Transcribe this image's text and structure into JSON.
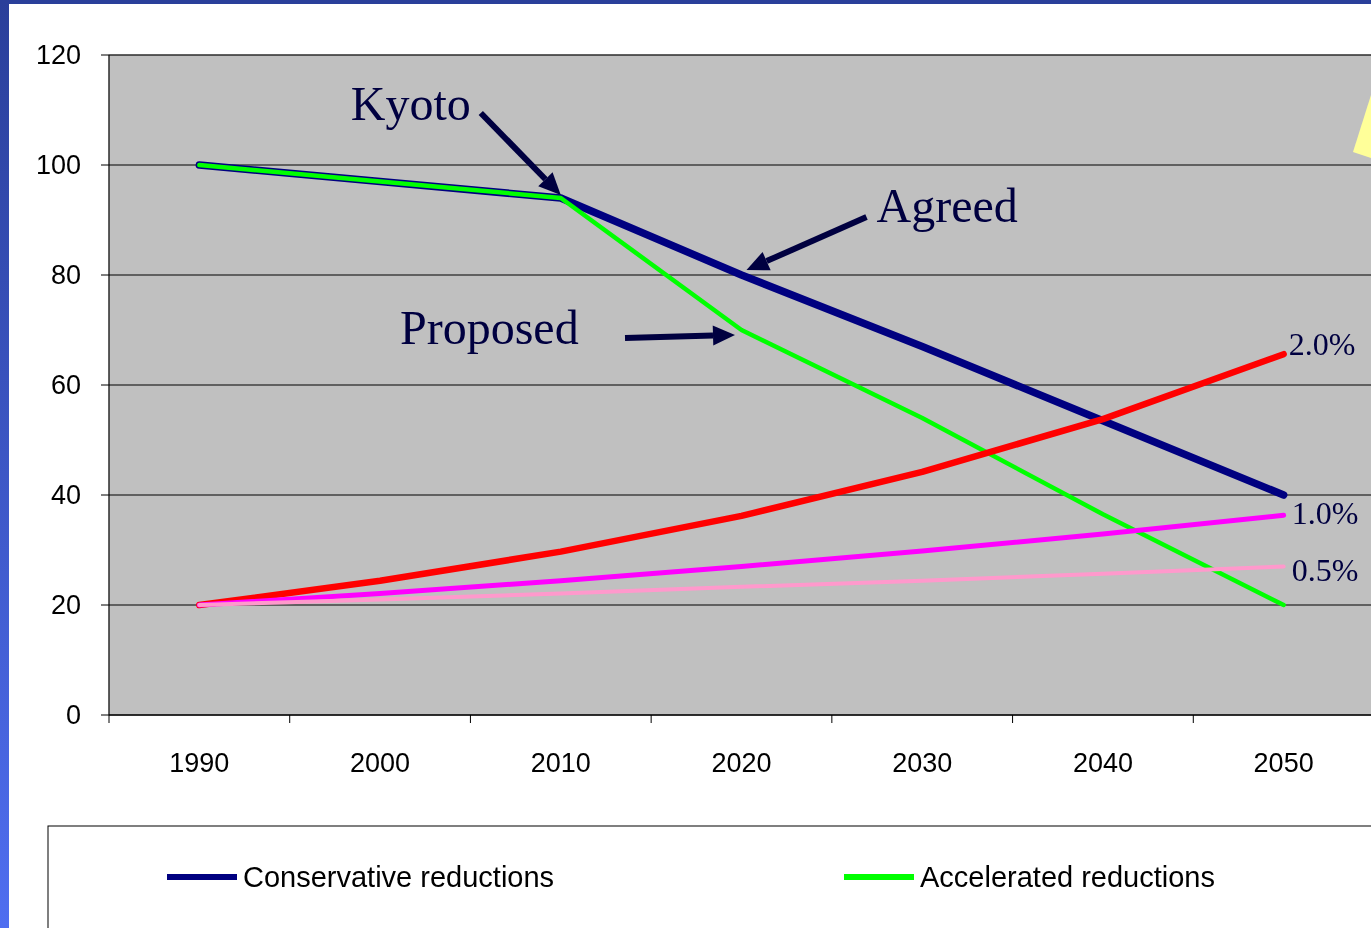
{
  "chart_data": {
    "type": "line",
    "categories": [
      "1990",
      "2000",
      "2010",
      "2020",
      "2030",
      "2040",
      "2050"
    ],
    "series": [
      {
        "name": "Conservative reductions",
        "color": "#000080",
        "values": [
          100,
          97,
          94,
          80,
          67,
          53.5,
          40
        ]
      },
      {
        "name": "Accelerated reductions",
        "color": "#00ff00",
        "values": [
          100,
          97,
          94,
          70,
          54,
          36.5,
          20
        ]
      },
      {
        "color": "#ff0000",
        "values": [
          20,
          24.4,
          29.7,
          36.2,
          44.2,
          53.8,
          65.6
        ]
      },
      {
        "color": "#ff00ff",
        "values": [
          20,
          22.1,
          24.4,
          27,
          29.8,
          32.9,
          36.3
        ]
      },
      {
        "color": "#ff99cc",
        "values": [
          20,
          21,
          22.1,
          23.3,
          24.4,
          25.7,
          27
        ]
      }
    ],
    "ylim": [
      0,
      120
    ],
    "yticks": [
      0,
      20,
      40,
      60,
      80,
      100,
      120
    ],
    "grid": "y",
    "legend": "bottom",
    "marker": "none",
    "line_style": "solid",
    "annotations": [
      {
        "text": "Kyoto",
        "x": "2010",
        "y": 94
      },
      {
        "text": "Agreed",
        "x": "2020",
        "y": 80
      },
      "Proposed",
      {
        "text": "2.0%",
        "x": "2050",
        "y": 65.6
      },
      {
        "text": "1.0%",
        "x": "2050",
        "y": 36.3
      },
      {
        "text": "0.5%",
        "x": "2050",
        "y": 27
      }
    ]
  }
}
